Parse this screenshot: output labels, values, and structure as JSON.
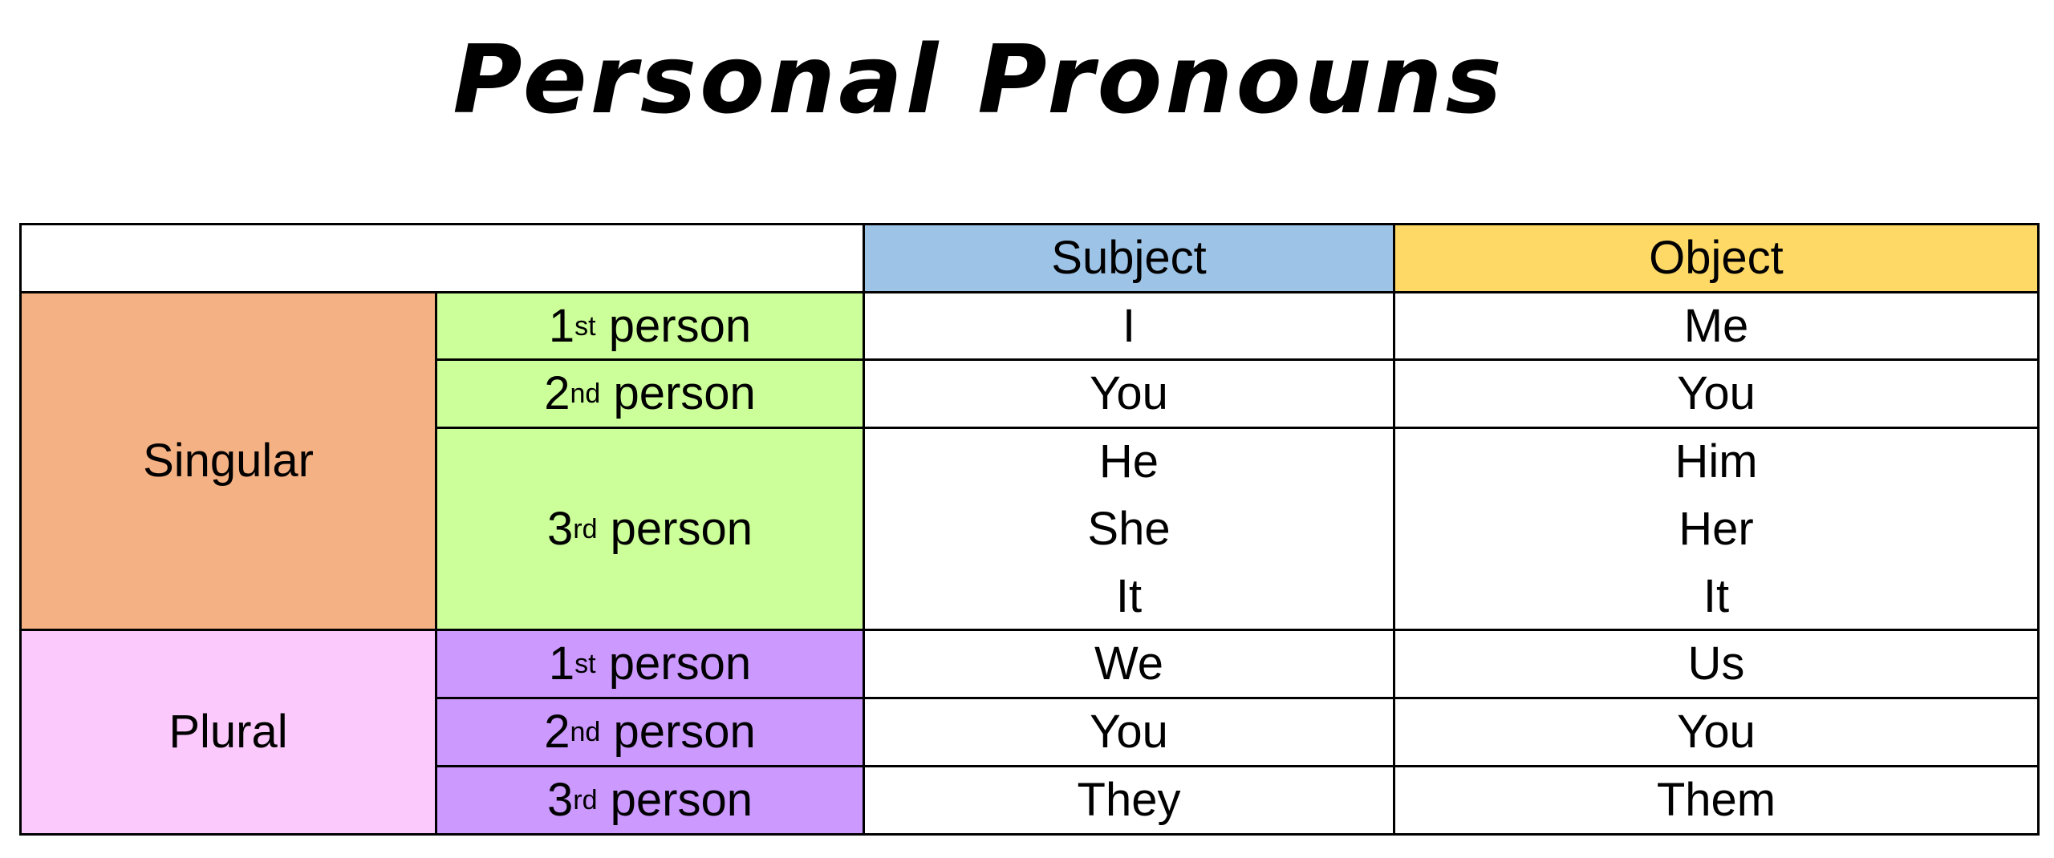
{
  "title": "Personal Pronouns",
  "colors": {
    "subject": "#9dc3e6",
    "object": "#ffd966",
    "singular": "#f4b183",
    "singular_person": "#ccff99",
    "plural": "#fbc9fb",
    "plural_person": "#cc99ff"
  },
  "headers": {
    "subject": "Subject",
    "object": "Object"
  },
  "groups": {
    "singular": "Singular",
    "plural": "Plural"
  },
  "persons": [
    {
      "num": "1",
      "sup": "st",
      "word": "person"
    },
    {
      "num": "2",
      "sup": "nd",
      "word": "person"
    },
    {
      "num": "3",
      "sup": "rd",
      "word": "person"
    }
  ],
  "singular": {
    "first": {
      "subject": "I",
      "object": "Me"
    },
    "second": {
      "subject": "You",
      "object": "You"
    },
    "third": {
      "subject": [
        "He",
        "She",
        "It"
      ],
      "object": [
        "Him",
        "Her",
        "It"
      ]
    }
  },
  "plural": {
    "first": {
      "subject": "We",
      "object": "Us"
    },
    "second": {
      "subject": "You",
      "object": "You"
    },
    "third": {
      "subject": "They",
      "object": "Them"
    }
  }
}
